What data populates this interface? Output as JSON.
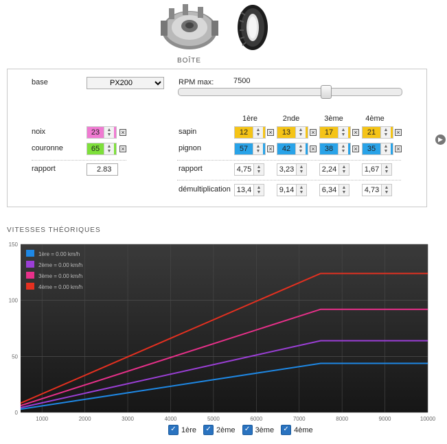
{
  "boite": {
    "title": "BOÎTE",
    "base_label": "base",
    "base_value": "PX200",
    "rpm_label": "RPM max:",
    "rpm_value": "7500",
    "rpm_fraction": 0.66,
    "noix_label": "noix",
    "noix_value": "23",
    "couronne_label": "couronne",
    "couronne_value": "65",
    "rapport_label": "rapport",
    "rapport_value": "2.83",
    "gear_headers": [
      "1ère",
      "2nde",
      "3ème",
      "4ème"
    ],
    "sapin_label": "sapin",
    "sapin_values": [
      "12",
      "13",
      "17",
      "21"
    ],
    "pignon_label": "pignon",
    "pignon_values": [
      "57",
      "42",
      "38",
      "35"
    ],
    "gear_rapport_label": "rapport",
    "gear_rapport_values": [
      "4,75",
      "3,23",
      "2,24",
      "1,67"
    ],
    "demult_label": "démultiplication",
    "demult_values": [
      "13,4",
      "9,14",
      "6,34",
      "4,73"
    ],
    "colors": {
      "noix": "#f07ad2",
      "couronne": "#7ee03a",
      "sapin": "#f5c417",
      "pignon": "#29a3e8"
    }
  },
  "vitesses": {
    "title": "VITESSES THÉORIQUES",
    "checkboxes": [
      "1ère",
      "2ème",
      "3ème",
      "4ème"
    ]
  },
  "chart_data": {
    "type": "line",
    "x": [
      500,
      7500,
      10000
    ],
    "xlim": [
      500,
      10000
    ],
    "ylim": [
      0,
      150
    ],
    "xticks": [
      1000,
      2000,
      3000,
      4000,
      5000,
      6000,
      7000,
      8000,
      9000,
      10000
    ],
    "yticks": [
      0,
      50,
      100,
      150
    ],
    "legend_position": "top-left",
    "series": [
      {
        "name": "1ère = 0.00 km/h",
        "color": "#1e88e5",
        "values": [
          2.9,
          43.8,
          43.8
        ]
      },
      {
        "name": "2ème = 0.00 km/h",
        "color": "#9b3fd6",
        "values": [
          4.3,
          64,
          64
        ]
      },
      {
        "name": "3ème = 0.00 km/h",
        "color": "#e8308a",
        "values": [
          6.1,
          92,
          92
        ]
      },
      {
        "name": "4ème = 0.00 km/h",
        "color": "#e53020",
        "values": [
          8.3,
          124,
          124
        ]
      }
    ]
  }
}
